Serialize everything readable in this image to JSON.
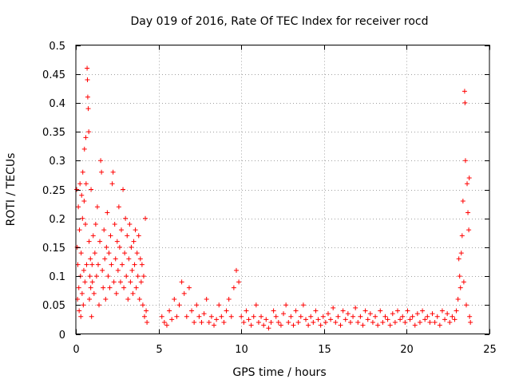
{
  "chart_data": {
    "type": "scatter",
    "title": "Day 019 of 2016, Rate Of TEC Index for receiver rocd",
    "xlabel": "GPS time / hours",
    "ylabel": "ROTI / TECUs",
    "xlim": [
      0,
      25
    ],
    "ylim": [
      0,
      0.5
    ],
    "x_ticks": [
      0,
      5,
      10,
      15,
      20,
      25
    ],
    "x_tick_labels": [
      "0",
      "5",
      "10",
      "15",
      "20",
      "25"
    ],
    "y_ticks": [
      0,
      0.05,
      0.1,
      0.15,
      0.2,
      0.25,
      0.3,
      0.35,
      0.4,
      0.45,
      0.5
    ],
    "y_tick_labels": [
      "0",
      "0.05",
      "0.1",
      "0.15",
      "0.2",
      "0.25",
      "0.3",
      "0.35",
      "0.4",
      "0.45",
      "0.5"
    ],
    "grid": true,
    "marker": "plus",
    "color": "#ff0000",
    "series": [
      {
        "name": "ROTI",
        "points": [
          [
            0.05,
            0.25
          ],
          [
            0.08,
            0.15
          ],
          [
            0.1,
            0.06
          ],
          [
            0.12,
            0.12
          ],
          [
            0.15,
            0.22
          ],
          [
            0.18,
            0.08
          ],
          [
            0.2,
            0.04
          ],
          [
            0.22,
            0.18
          ],
          [
            0.25,
            0.26
          ],
          [
            0.28,
            0.1
          ],
          [
            0.3,
            0.03
          ],
          [
            0.32,
            0.14
          ],
          [
            0.35,
            0.24
          ],
          [
            0.38,
            0.07
          ],
          [
            0.4,
            0.2
          ],
          [
            0.42,
            0.28
          ],
          [
            0.45,
            0.05
          ],
          [
            0.48,
            0.11
          ],
          [
            0.5,
            0.23
          ],
          [
            0.52,
            0.32
          ],
          [
            0.55,
            0.09
          ],
          [
            0.58,
            0.19
          ],
          [
            0.6,
            0.34
          ],
          [
            0.62,
            0.26
          ],
          [
            0.65,
            0.12
          ],
          [
            0.68,
            0.46
          ],
          [
            0.7,
            0.44
          ],
          [
            0.72,
            0.41
          ],
          [
            0.75,
            0.39
          ],
          [
            0.78,
            0.35
          ],
          [
            0.8,
            0.16
          ],
          [
            0.82,
            0.06
          ],
          [
            0.85,
            0.1
          ],
          [
            0.88,
            0.13
          ],
          [
            0.9,
            0.08
          ],
          [
            0.92,
            0.25
          ],
          [
            0.95,
            0.03
          ],
          [
            0.98,
            0.12
          ],
          [
            1.0,
            0.09
          ],
          [
            1.05,
            0.17
          ],
          [
            1.1,
            0.07
          ],
          [
            1.15,
            0.14
          ],
          [
            1.2,
            0.19
          ],
          [
            1.25,
            0.1
          ],
          [
            1.3,
            0.22
          ],
          [
            1.35,
            0.12
          ],
          [
            1.4,
            0.05
          ],
          [
            1.45,
            0.16
          ],
          [
            1.5,
            0.3
          ],
          [
            1.55,
            0.28
          ],
          [
            1.6,
            0.11
          ],
          [
            1.65,
            0.08
          ],
          [
            1.7,
            0.18
          ],
          [
            1.75,
            0.13
          ],
          [
            1.8,
            0.06
          ],
          [
            1.85,
            0.15
          ],
          [
            1.9,
            0.21
          ],
          [
            1.95,
            0.1
          ],
          [
            2.0,
            0.14
          ],
          [
            2.05,
            0.08
          ],
          [
            2.1,
            0.17
          ],
          [
            2.15,
            0.12
          ],
          [
            2.2,
            0.26
          ],
          [
            2.25,
            0.28
          ],
          [
            2.3,
            0.09
          ],
          [
            2.35,
            0.19
          ],
          [
            2.4,
            0.13
          ],
          [
            2.45,
            0.07
          ],
          [
            2.5,
            0.16
          ],
          [
            2.55,
            0.11
          ],
          [
            2.6,
            0.22
          ],
          [
            2.65,
            0.15
          ],
          [
            2.7,
            0.09
          ],
          [
            2.75,
            0.18
          ],
          [
            2.8,
            0.12
          ],
          [
            2.85,
            0.25
          ],
          [
            2.9,
            0.08
          ],
          [
            2.95,
            0.14
          ],
          [
            3.0,
            0.2
          ],
          [
            3.05,
            0.1
          ],
          [
            3.1,
            0.17
          ],
          [
            3.15,
            0.06
          ],
          [
            3.2,
            0.13
          ],
          [
            3.25,
            0.19
          ],
          [
            3.3,
            0.09
          ],
          [
            3.35,
            0.15
          ],
          [
            3.4,
            0.11
          ],
          [
            3.45,
            0.07
          ],
          [
            3.5,
            0.16
          ],
          [
            3.55,
            0.12
          ],
          [
            3.6,
            0.18
          ],
          [
            3.65,
            0.08
          ],
          [
            3.7,
            0.14
          ],
          [
            3.75,
            0.1
          ],
          [
            3.8,
            0.17
          ],
          [
            3.85,
            0.06
          ],
          [
            3.9,
            0.13
          ],
          [
            3.95,
            0.09
          ],
          [
            4.0,
            0.12
          ],
          [
            4.05,
            0.05
          ],
          [
            4.1,
            0.1
          ],
          [
            4.15,
            0.03
          ],
          [
            4.2,
            0.2
          ],
          [
            4.25,
            0.04
          ],
          [
            4.3,
            0.02
          ],
          [
            5.2,
            0.03
          ],
          [
            5.35,
            0.02
          ],
          [
            5.5,
            0.015
          ],
          [
            5.65,
            0.04
          ],
          [
            5.8,
            0.025
          ],
          [
            5.95,
            0.06
          ],
          [
            6.1,
            0.03
          ],
          [
            6.25,
            0.05
          ],
          [
            6.4,
            0.09
          ],
          [
            6.55,
            0.07
          ],
          [
            6.7,
            0.03
          ],
          [
            6.85,
            0.08
          ],
          [
            7.0,
            0.04
          ],
          [
            7.15,
            0.02
          ],
          [
            7.3,
            0.05
          ],
          [
            7.45,
            0.03
          ],
          [
            7.6,
            0.02
          ],
          [
            7.75,
            0.035
          ],
          [
            7.9,
            0.06
          ],
          [
            8.05,
            0.02
          ],
          [
            8.2,
            0.03
          ],
          [
            8.35,
            0.015
          ],
          [
            8.5,
            0.025
          ],
          [
            8.65,
            0.05
          ],
          [
            8.8,
            0.03
          ],
          [
            8.95,
            0.02
          ],
          [
            9.1,
            0.04
          ],
          [
            9.25,
            0.06
          ],
          [
            9.4,
            0.03
          ],
          [
            9.55,
            0.08
          ],
          [
            9.7,
            0.11
          ],
          [
            9.85,
            0.09
          ],
          [
            10.0,
            0.03
          ],
          [
            10.15,
            0.02
          ],
          [
            10.3,
            0.04
          ],
          [
            10.45,
            0.025
          ],
          [
            10.6,
            0.015
          ],
          [
            10.75,
            0.03
          ],
          [
            10.9,
            0.05
          ],
          [
            11.05,
            0.02
          ],
          [
            11.2,
            0.03
          ],
          [
            11.35,
            0.015
          ],
          [
            11.5,
            0.025
          ],
          [
            11.65,
            0.01
          ],
          [
            11.8,
            0.02
          ],
          [
            11.95,
            0.04
          ],
          [
            12.1,
            0.03
          ],
          [
            12.25,
            0.02
          ],
          [
            12.4,
            0.015
          ],
          [
            12.55,
            0.035
          ],
          [
            12.7,
            0.05
          ],
          [
            12.85,
            0.02
          ],
          [
            13.0,
            0.03
          ],
          [
            13.15,
            0.015
          ],
          [
            13.3,
            0.04
          ],
          [
            13.45,
            0.02
          ],
          [
            13.6,
            0.03
          ],
          [
            13.75,
            0.05
          ],
          [
            13.9,
            0.025
          ],
          [
            14.05,
            0.015
          ],
          [
            14.2,
            0.03
          ],
          [
            14.35,
            0.02
          ],
          [
            14.5,
            0.04
          ],
          [
            14.65,
            0.025
          ],
          [
            14.8,
            0.015
          ],
          [
            14.95,
            0.03
          ],
          [
            15.1,
            0.02
          ],
          [
            15.25,
            0.035
          ],
          [
            15.4,
            0.025
          ],
          [
            15.55,
            0.045
          ],
          [
            15.7,
            0.02
          ],
          [
            15.85,
            0.03
          ],
          [
            16.0,
            0.015
          ],
          [
            16.15,
            0.04
          ],
          [
            16.3,
            0.025
          ],
          [
            16.45,
            0.035
          ],
          [
            16.6,
            0.02
          ],
          [
            16.75,
            0.03
          ],
          [
            16.9,
            0.045
          ],
          [
            17.05,
            0.02
          ],
          [
            17.2,
            0.03
          ],
          [
            17.35,
            0.015
          ],
          [
            17.5,
            0.04
          ],
          [
            17.65,
            0.025
          ],
          [
            17.8,
            0.035
          ],
          [
            17.95,
            0.02
          ],
          [
            18.1,
            0.03
          ],
          [
            18.25,
            0.015
          ],
          [
            18.4,
            0.04
          ],
          [
            18.55,
            0.02
          ],
          [
            18.7,
            0.03
          ],
          [
            18.85,
            0.025
          ],
          [
            19.0,
            0.015
          ],
          [
            19.15,
            0.035
          ],
          [
            19.3,
            0.02
          ],
          [
            19.45,
            0.04
          ],
          [
            19.6,
            0.025
          ],
          [
            19.75,
            0.03
          ],
          [
            19.9,
            0.02
          ],
          [
            20.05,
            0.04
          ],
          [
            20.2,
            0.025
          ],
          [
            20.35,
            0.03
          ],
          [
            20.5,
            0.015
          ],
          [
            20.65,
            0.035
          ],
          [
            20.8,
            0.02
          ],
          [
            20.95,
            0.04
          ],
          [
            21.1,
            0.025
          ],
          [
            21.25,
            0.03
          ],
          [
            21.4,
            0.02
          ],
          [
            21.55,
            0.035
          ],
          [
            21.7,
            0.02
          ],
          [
            21.85,
            0.03
          ],
          [
            22.0,
            0.015
          ],
          [
            22.15,
            0.04
          ],
          [
            22.3,
            0.025
          ],
          [
            22.45,
            0.035
          ],
          [
            22.6,
            0.02
          ],
          [
            22.75,
            0.03
          ],
          [
            22.9,
            0.025
          ],
          [
            23.0,
            0.04
          ],
          [
            23.1,
            0.06
          ],
          [
            23.15,
            0.13
          ],
          [
            23.2,
            0.1
          ],
          [
            23.25,
            0.08
          ],
          [
            23.3,
            0.14
          ],
          [
            23.35,
            0.17
          ],
          [
            23.4,
            0.23
          ],
          [
            23.45,
            0.09
          ],
          [
            23.5,
            0.42
          ],
          [
            23.52,
            0.4
          ],
          [
            23.55,
            0.3
          ],
          [
            23.6,
            0.05
          ],
          [
            23.65,
            0.26
          ],
          [
            23.7,
            0.21
          ],
          [
            23.75,
            0.18
          ],
          [
            23.78,
            0.27
          ],
          [
            23.8,
            0.03
          ],
          [
            23.85,
            0.02
          ]
        ]
      }
    ]
  }
}
